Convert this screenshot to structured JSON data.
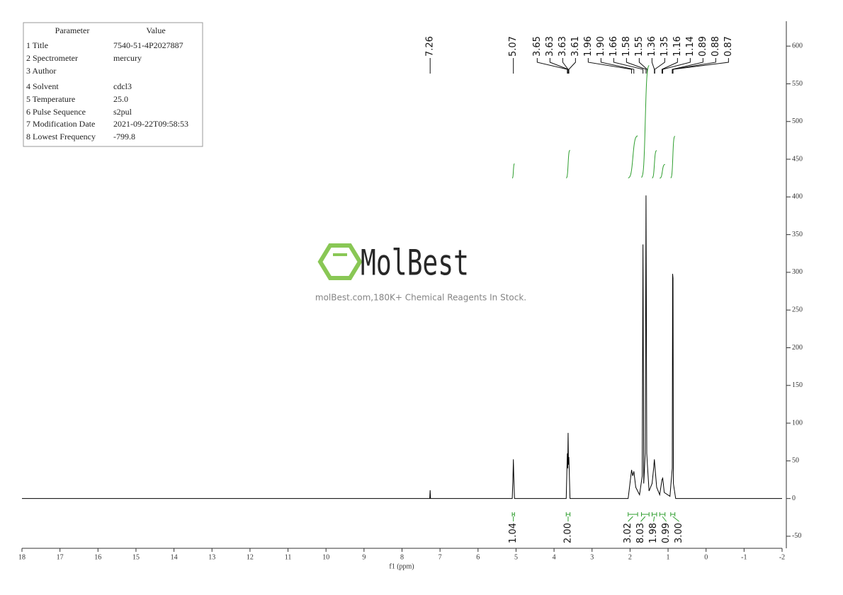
{
  "parameters": {
    "header": [
      "Parameter",
      "Value"
    ],
    "rows": [
      [
        "1 Title",
        "7540-51-4P2027887"
      ],
      [
        "2 Spectrometer",
        "mercury"
      ],
      [
        "3 Author",
        ""
      ],
      [
        "4 Solvent",
        "cdcl3"
      ],
      [
        "5 Temperature",
        "25.0"
      ],
      [
        "6 Pulse Sequence",
        "s2pul"
      ],
      [
        "7 Modification Date",
        "2021-09-22T09:58:53"
      ],
      [
        "8 Lowest Frequency",
        "-799.8"
      ]
    ]
  },
  "watermark": {
    "logo": "MolBest",
    "text": "molBest.com,180K+ Chemical Reagents In Stock."
  },
  "chart_data": {
    "type": "nmr",
    "color": "#000000",
    "integral_color": "#2e9e2e",
    "x_label": "f1 (ppm)",
    "x": [
      18,
      7.3,
      7.27,
      7.26,
      7.25,
      5.1,
      5.08,
      5.07,
      5.06,
      5.04,
      3.68,
      3.65,
      3.64,
      3.63,
      3.62,
      3.61,
      3.58,
      2.05,
      1.96,
      1.93,
      1.9,
      1.85,
      1.75,
      1.68,
      1.66,
      1.64,
      1.6,
      1.58,
      1.56,
      1.55,
      1.5,
      1.42,
      1.38,
      1.36,
      1.35,
      1.3,
      1.22,
      1.16,
      1.14,
      1.1,
      0.95,
      0.89,
      0.88,
      0.87,
      0.86,
      0.8,
      -2
    ],
    "values": [
      0,
      0,
      0,
      11,
      0,
      0,
      30,
      52,
      30,
      0,
      0,
      60,
      40,
      87,
      45,
      55,
      0,
      0,
      38,
      30,
      36,
      15,
      5,
      30,
      337,
      20,
      60,
      402,
      60,
      50,
      10,
      20,
      40,
      52,
      45,
      15,
      5,
      25,
      27,
      8,
      3,
      40,
      298,
      292,
      20,
      0,
      0
    ],
    "xlim": [
      18,
      -2
    ],
    "xticks": [
      18,
      17,
      16,
      15,
      14,
      13,
      12,
      11,
      10,
      9,
      8,
      7,
      6,
      5,
      4,
      3,
      2,
      1,
      0,
      -1,
      -2
    ],
    "ylim": [
      -66,
      633
    ],
    "yticks": [
      -50,
      0,
      50,
      100,
      150,
      200,
      250,
      300,
      350,
      400,
      450,
      500,
      550,
      600
    ],
    "peaks": {
      "values": [
        7.26,
        5.07,
        3.65,
        3.63,
        3.63,
        3.61,
        1.96,
        1.9,
        1.66,
        1.58,
        1.55,
        1.36,
        1.35,
        1.16,
        1.14,
        0.89,
        0.88,
        0.87
      ],
      "value_labels": [
        "7.26",
        "5.07",
        "3.65",
        "3.63",
        "3.63",
        "3.61",
        "1.96",
        "1.90",
        "1.66",
        "1.58",
        "1.55",
        "1.36",
        "1.35",
        "1.16",
        "1.14",
        "0.89",
        "0.88",
        "0.87"
      ]
    },
    "integrals": {
      "values": [
        1.04,
        2,
        3.02,
        8.03,
        1.98,
        0.99,
        3
      ],
      "value_labels": [
        "1.04",
        "2.00",
        "3.02",
        "8.03",
        "1.98",
        "0.99",
        "3.00"
      ],
      "ranges": [
        [
          5.1,
          5.04
        ],
        [
          3.68,
          3.58
        ],
        [
          2.05,
          1.8
        ],
        [
          1.7,
          1.5
        ],
        [
          1.42,
          1.3
        ],
        [
          1.22,
          1.08
        ],
        [
          0.93,
          0.82
        ]
      ]
    }
  }
}
